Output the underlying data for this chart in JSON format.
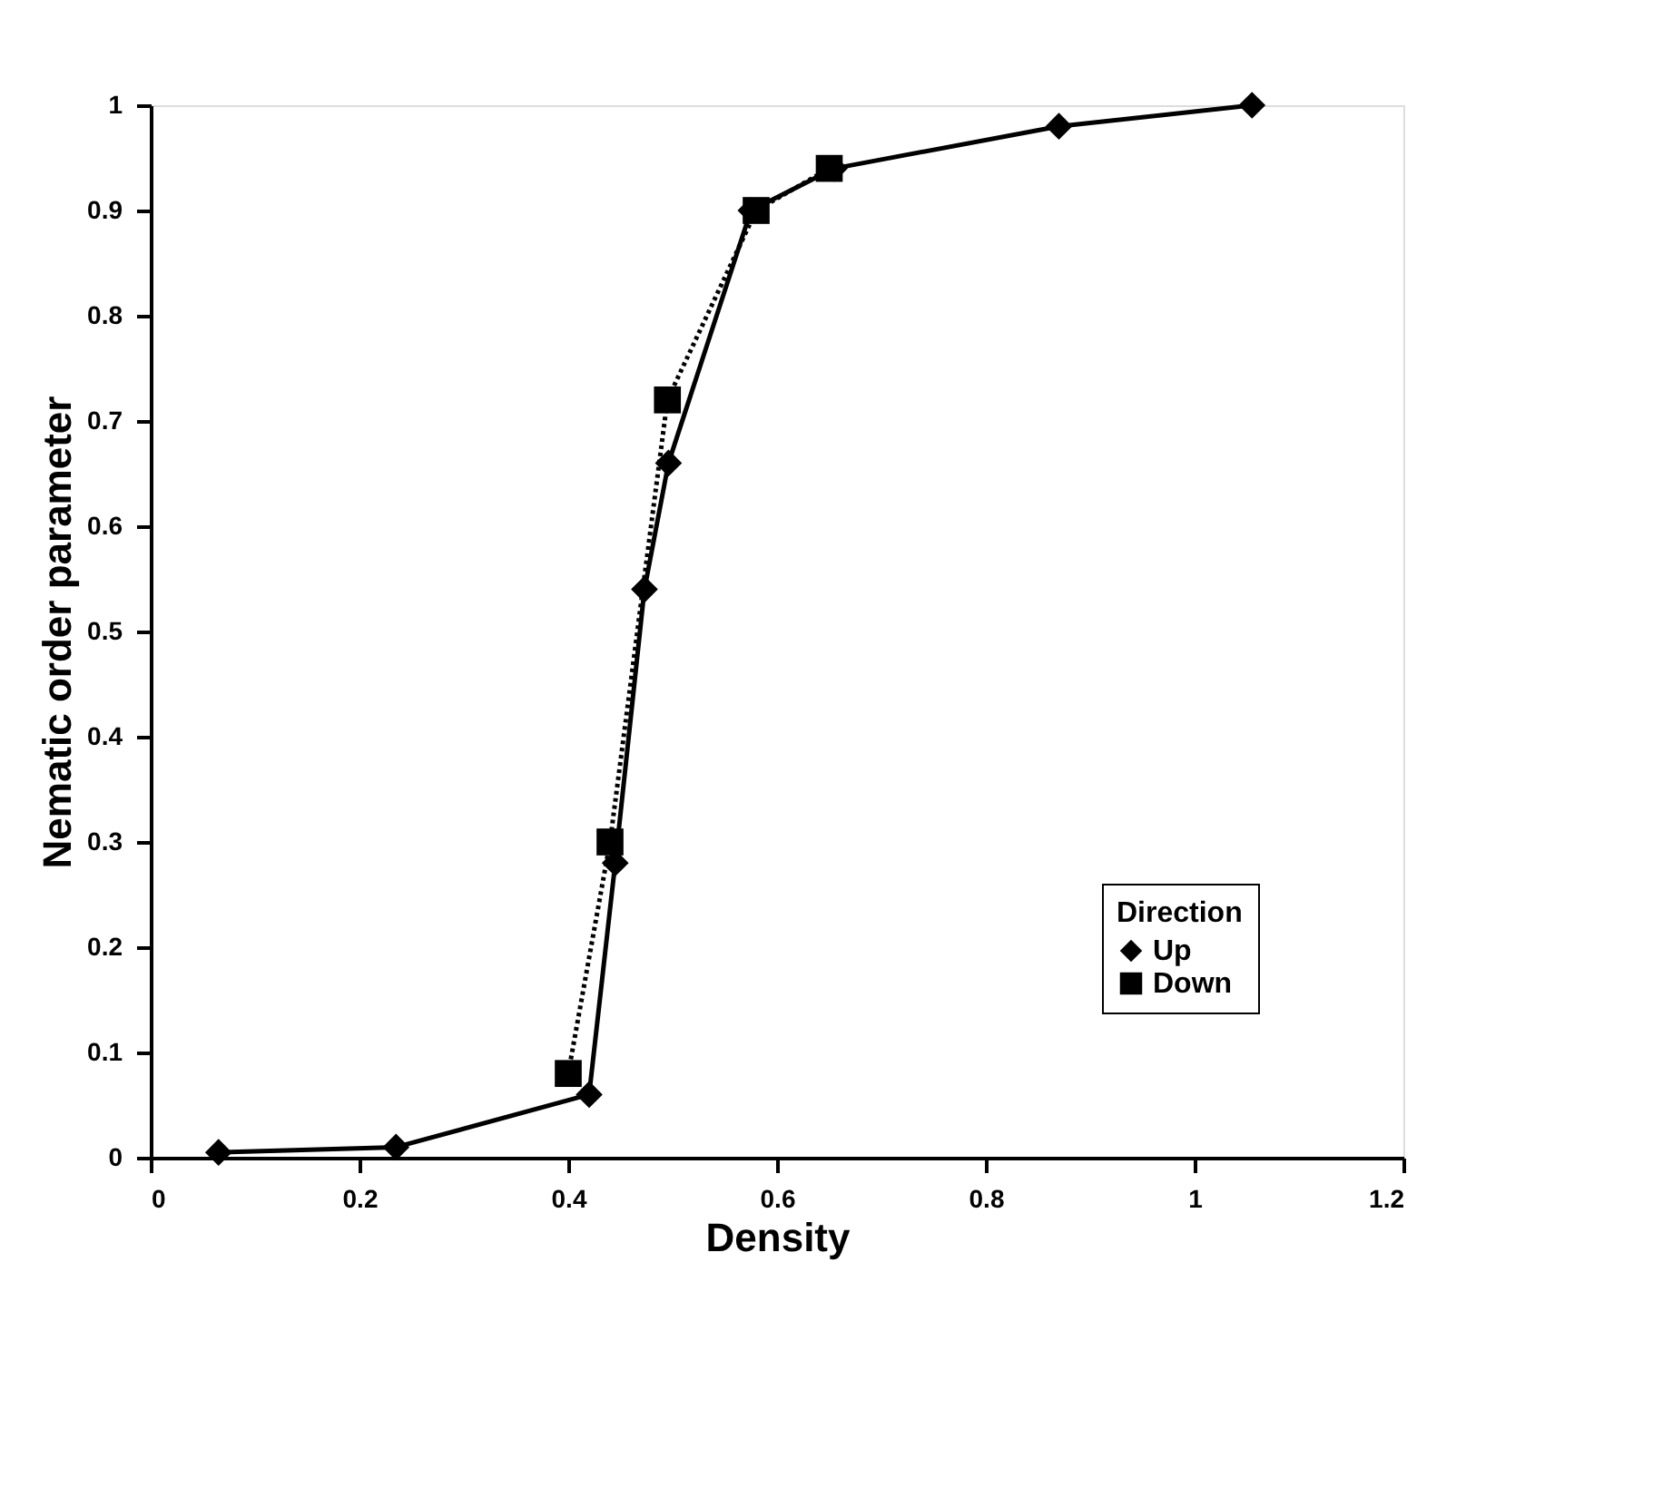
{
  "chart_data": {
    "type": "line",
    "xlabel": "Density",
    "ylabel": "Nematic order parameter",
    "legend_title": "Direction",
    "legend": "bottom right",
    "grid": false,
    "xlim": [
      0,
      1.2
    ],
    "xticks": [
      0,
      0.2,
      0.4,
      0.6,
      0.8,
      1,
      1.2
    ],
    "ylim": [
      0,
      1
    ],
    "yticks": [
      0,
      0.1,
      0.2,
      0.3,
      0.4,
      0.5,
      0.6,
      0.7,
      0.8,
      0.9,
      1
    ],
    "series": [
      {
        "name": "Up",
        "color": "#000000",
        "marker": "diamond",
        "line_style": "solid",
        "x": [
          0.065,
          0.235,
          0.42,
          0.445,
          0.473,
          0.496,
          0.575,
          0.655,
          0.87,
          1.055
        ],
        "values": [
          0.005,
          0.01,
          0.06,
          0.28,
          0.54,
          0.66,
          0.9,
          0.94,
          0.98,
          1.0
        ]
      },
      {
        "name": "Down",
        "color": "#000000",
        "marker": "square",
        "line_style": "dotted",
        "x": [
          0.4,
          0.44,
          0.495,
          0.58,
          0.65
        ],
        "values": [
          0.08,
          0.3,
          0.72,
          0.9,
          0.94
        ]
      }
    ]
  }
}
